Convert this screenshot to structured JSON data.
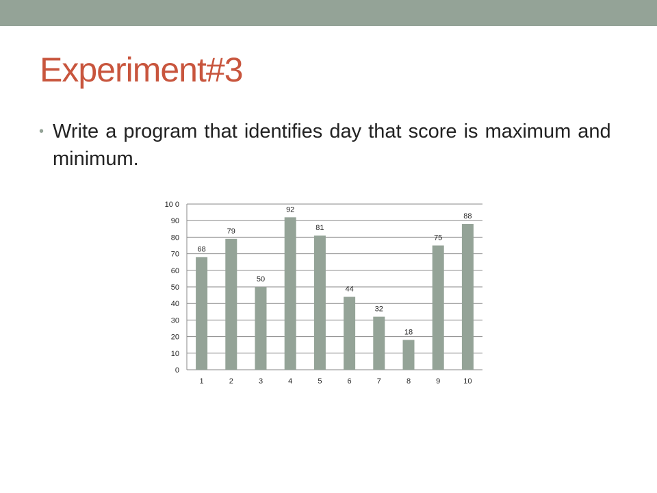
{
  "slide": {
    "title": "Experiment#3",
    "bullets": [
      "Write a program that identifies day that score is maximum and minimum."
    ]
  },
  "colors": {
    "top_bar": "#94a397",
    "title": "#c8553d",
    "bar_fill": "#94a397",
    "gridline": "#878787"
  },
  "chart_data": {
    "type": "bar",
    "categories": [
      "1",
      "2",
      "3",
      "4",
      "5",
      "6",
      "7",
      "8",
      "9",
      "10"
    ],
    "values": [
      68,
      79,
      50,
      92,
      81,
      44,
      32,
      18,
      75,
      88
    ],
    "title": "",
    "xlabel": "",
    "ylabel": "",
    "ylim": [
      0,
      100
    ],
    "yticks": [
      0,
      10,
      20,
      30,
      40,
      50,
      60,
      70,
      80,
      90,
      100
    ],
    "ytick_labels": [
      "0",
      "10",
      "20",
      "30",
      "40",
      "50",
      "60",
      "70",
      "80",
      "90",
      "10 0"
    ],
    "grid": true,
    "legend": "none",
    "data_labels": true
  }
}
